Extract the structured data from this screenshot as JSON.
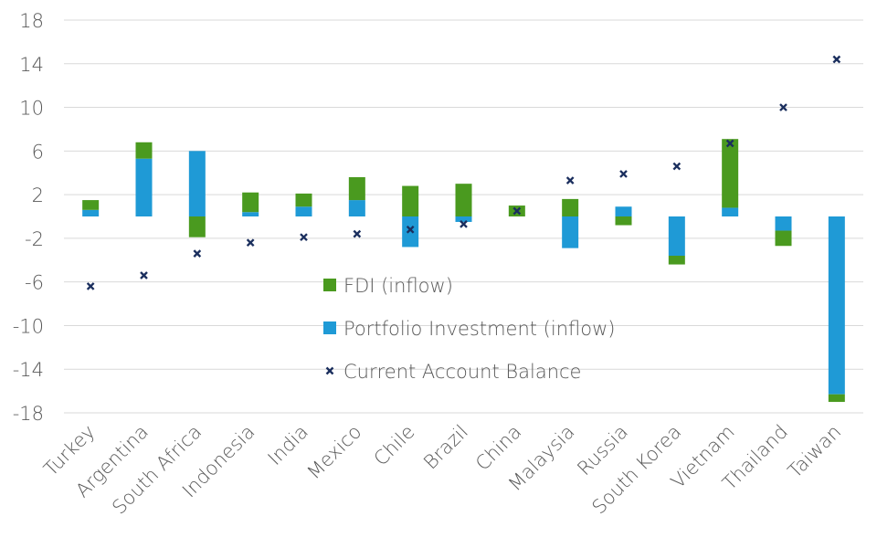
{
  "chart_data": {
    "type": "bar",
    "stacked": true,
    "categories": [
      "Turkey",
      "Argentina",
      "South Africa",
      "Indonesia",
      "India",
      "Mexico",
      "Chile",
      "Brazil",
      "China",
      "Malaysia",
      "Russia",
      "South Korea",
      "Vietnam",
      "Thailand",
      "Taiwan"
    ],
    "series": [
      {
        "name": "FDI (inflow)",
        "kind": "bar",
        "color": "#4a9a1f",
        "values": [
          0.9,
          1.5,
          -1.9,
          1.8,
          1.2,
          2.1,
          2.8,
          3.0,
          1.0,
          1.6,
          -0.8,
          -0.8,
          6.3,
          -1.4,
          -0.7
        ]
      },
      {
        "name": "Portfolio Investment (inflow)",
        "kind": "bar",
        "color": "#1f9ad6",
        "values": [
          0.6,
          5.3,
          6.0,
          0.4,
          0.9,
          1.5,
          -2.8,
          -0.5,
          0.0,
          -2.9,
          0.9,
          -3.6,
          0.8,
          -1.3,
          -16.3
        ]
      },
      {
        "name": "Current Account Balance",
        "kind": "marker",
        "color": "#1b2f5e",
        "values": [
          -6.4,
          -5.4,
          -3.4,
          -2.4,
          -1.9,
          -1.6,
          -1.2,
          -0.7,
          0.5,
          3.3,
          3.9,
          4.6,
          6.7,
          10.0,
          14.4
        ]
      }
    ],
    "yticks": [
      18,
      14,
      10,
      6,
      2,
      -2,
      -6,
      -10,
      -14,
      -18
    ],
    "ylim": [
      -18,
      18
    ],
    "grid": true,
    "legend_position": "center",
    "title": "",
    "xlabel": "",
    "ylabel": ""
  }
}
